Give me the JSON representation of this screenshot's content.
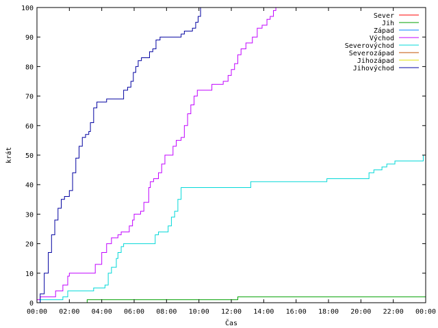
{
  "chart_data": {
    "type": "line",
    "xlabel": "Čas",
    "ylabel": "krát",
    "xlim": [
      0,
      24
    ],
    "ylim": [
      0,
      100
    ],
    "x_ticks": [
      {
        "value": 0,
        "label": "00:00"
      },
      {
        "value": 2,
        "label": "02:00"
      },
      {
        "value": 4,
        "label": "04:00"
      },
      {
        "value": 6,
        "label": "06:00"
      },
      {
        "value": 8,
        "label": "08:00"
      },
      {
        "value": 10,
        "label": "10:00"
      },
      {
        "value": 12,
        "label": "12:00"
      },
      {
        "value": 14,
        "label": "14:00"
      },
      {
        "value": 16,
        "label": "16:00"
      },
      {
        "value": 18,
        "label": "18:00"
      },
      {
        "value": 20,
        "label": "20:00"
      },
      {
        "value": 22,
        "label": "22:00"
      },
      {
        "value": 24,
        "label": "00:00"
      }
    ],
    "y_ticks": [
      0,
      10,
      20,
      30,
      40,
      50,
      60,
      70,
      80,
      90,
      100
    ],
    "grid": false,
    "legend_position": "top-right",
    "series": [
      {
        "name": "Sever",
        "color": "#ff0000",
        "step": true,
        "points": []
      },
      {
        "name": "Jih",
        "color": "#00a000",
        "step": true,
        "points": [
          [
            0.0,
            0
          ],
          [
            3.1,
            1
          ],
          [
            12.4,
            2
          ],
          [
            24.0,
            2
          ]
        ]
      },
      {
        "name": "Západ",
        "color": "#0080ff",
        "step": true,
        "points": []
      },
      {
        "name": "Východ",
        "color": "#c000ff",
        "step": true,
        "points": [
          [
            0.0,
            1
          ],
          [
            0.2,
            2
          ],
          [
            1.15,
            4
          ],
          [
            1.6,
            6
          ],
          [
            1.9,
            9
          ],
          [
            2.0,
            10
          ],
          [
            3.2,
            10
          ],
          [
            3.6,
            13
          ],
          [
            4.0,
            17
          ],
          [
            4.3,
            20
          ],
          [
            4.6,
            22
          ],
          [
            5.0,
            23
          ],
          [
            5.2,
            24
          ],
          [
            5.7,
            26
          ],
          [
            5.9,
            28
          ],
          [
            6.0,
            30
          ],
          [
            6.4,
            31
          ],
          [
            6.6,
            34
          ],
          [
            6.9,
            39
          ],
          [
            7.0,
            41
          ],
          [
            7.2,
            42
          ],
          [
            7.5,
            44
          ],
          [
            7.7,
            47
          ],
          [
            7.9,
            50
          ],
          [
            8.2,
            50
          ],
          [
            8.4,
            53
          ],
          [
            8.6,
            55
          ],
          [
            8.9,
            56
          ],
          [
            9.1,
            60
          ],
          [
            9.3,
            64
          ],
          [
            9.5,
            67
          ],
          [
            9.7,
            70
          ],
          [
            9.9,
            72
          ],
          [
            10.6,
            72
          ],
          [
            10.8,
            74
          ],
          [
            11.5,
            75
          ],
          [
            11.8,
            77
          ],
          [
            12.0,
            79
          ],
          [
            12.2,
            81
          ],
          [
            12.4,
            84
          ],
          [
            12.6,
            86
          ],
          [
            12.9,
            88
          ],
          [
            13.3,
            90
          ],
          [
            13.6,
            93
          ],
          [
            13.9,
            94
          ],
          [
            14.2,
            96
          ],
          [
            14.4,
            97
          ],
          [
            14.6,
            99
          ],
          [
            14.75,
            100
          ]
        ]
      },
      {
        "name": "Severovýchod",
        "color": "#00d8d8",
        "step": true,
        "points": [
          [
            0.0,
            0
          ],
          [
            0.2,
            1
          ],
          [
            1.6,
            2
          ],
          [
            1.9,
            4
          ],
          [
            3.4,
            4
          ],
          [
            3.5,
            5
          ],
          [
            4.1,
            5
          ],
          [
            4.2,
            6
          ],
          [
            4.4,
            10
          ],
          [
            4.6,
            12
          ],
          [
            4.9,
            15
          ],
          [
            5.0,
            17
          ],
          [
            5.2,
            19
          ],
          [
            5.35,
            20
          ],
          [
            7.2,
            20
          ],
          [
            7.3,
            23
          ],
          [
            7.5,
            24
          ],
          [
            7.9,
            24
          ],
          [
            8.1,
            26
          ],
          [
            8.3,
            29
          ],
          [
            8.5,
            31
          ],
          [
            8.7,
            35
          ],
          [
            8.9,
            39
          ],
          [
            13.1,
            39
          ],
          [
            13.2,
            41
          ],
          [
            17.8,
            41
          ],
          [
            17.9,
            42
          ],
          [
            20.4,
            42
          ],
          [
            20.5,
            44
          ],
          [
            20.8,
            45
          ],
          [
            21.3,
            46
          ],
          [
            21.6,
            47
          ],
          [
            22.1,
            48
          ],
          [
            23.6,
            48
          ],
          [
            23.85,
            50
          ],
          [
            24.0,
            52
          ]
        ]
      },
      {
        "name": "Severozápad",
        "color": "#c05000",
        "step": true,
        "points": []
      },
      {
        "name": "Jihozápad",
        "color": "#e0e000",
        "step": true,
        "points": []
      },
      {
        "name": "Jihovýchod",
        "color": "#0000a0",
        "step": true,
        "points": [
          [
            0.0,
            0
          ],
          [
            0.2,
            3
          ],
          [
            0.45,
            10
          ],
          [
            0.7,
            17
          ],
          [
            0.9,
            23
          ],
          [
            1.1,
            28
          ],
          [
            1.3,
            32
          ],
          [
            1.5,
            35
          ],
          [
            1.7,
            36
          ],
          [
            2.0,
            38
          ],
          [
            2.2,
            44
          ],
          [
            2.4,
            49
          ],
          [
            2.6,
            53
          ],
          [
            2.8,
            56
          ],
          [
            3.0,
            57
          ],
          [
            3.2,
            58
          ],
          [
            3.3,
            61
          ],
          [
            3.5,
            66
          ],
          [
            3.7,
            68
          ],
          [
            4.1,
            68
          ],
          [
            4.3,
            69
          ],
          [
            5.2,
            69
          ],
          [
            5.35,
            72
          ],
          [
            5.6,
            73
          ],
          [
            5.8,
            75
          ],
          [
            5.95,
            78
          ],
          [
            6.1,
            80
          ],
          [
            6.25,
            82
          ],
          [
            6.45,
            83
          ],
          [
            6.8,
            83
          ],
          [
            6.95,
            85
          ],
          [
            7.15,
            86
          ],
          [
            7.35,
            89
          ],
          [
            7.6,
            90
          ],
          [
            8.7,
            90
          ],
          [
            8.9,
            91
          ],
          [
            9.1,
            92
          ],
          [
            9.3,
            92
          ],
          [
            9.6,
            93
          ],
          [
            9.8,
            95
          ],
          [
            9.95,
            97
          ],
          [
            10.1,
            100
          ]
        ]
      }
    ]
  }
}
